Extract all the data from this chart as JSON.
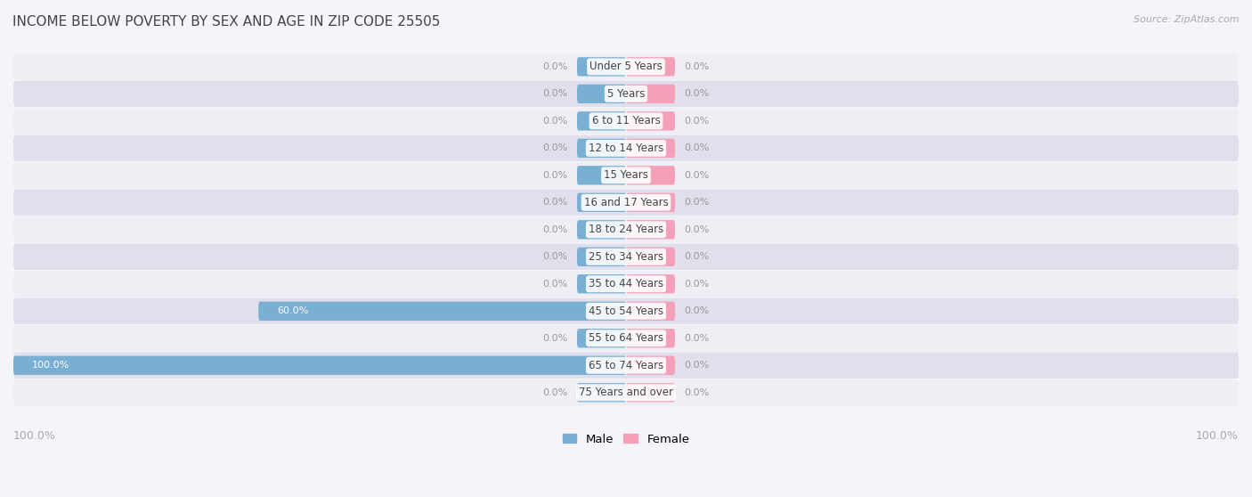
{
  "title": "INCOME BELOW POVERTY BY SEX AND AGE IN ZIP CODE 25505",
  "source": "Source: ZipAtlas.com",
  "categories": [
    "Under 5 Years",
    "5 Years",
    "6 to 11 Years",
    "12 to 14 Years",
    "15 Years",
    "16 and 17 Years",
    "18 to 24 Years",
    "25 to 34 Years",
    "35 to 44 Years",
    "45 to 54 Years",
    "55 to 64 Years",
    "65 to 74 Years",
    "75 Years and over"
  ],
  "male_values": [
    0.0,
    0.0,
    0.0,
    0.0,
    0.0,
    0.0,
    0.0,
    0.0,
    0.0,
    60.0,
    0.0,
    100.0,
    0.0
  ],
  "female_values": [
    0.0,
    0.0,
    0.0,
    0.0,
    0.0,
    0.0,
    0.0,
    0.0,
    0.0,
    0.0,
    0.0,
    0.0,
    0.0
  ],
  "male_color": "#7aafd4",
  "female_color": "#f4a0b8",
  "male_label": "Male",
  "female_label": "Female",
  "row_bg_light": "#eeeef5",
  "row_bg_dark": "#e0e0ec",
  "fig_bg": "#f4f4f9",
  "label_color": "#999999",
  "title_color": "#444444",
  "source_color": "#aaaaaa",
  "axis_label_color": "#aaaaaa",
  "max_value": 100.0,
  "stub_value": 8.0,
  "x_left_label": "100.0%",
  "x_right_label": "100.0%"
}
